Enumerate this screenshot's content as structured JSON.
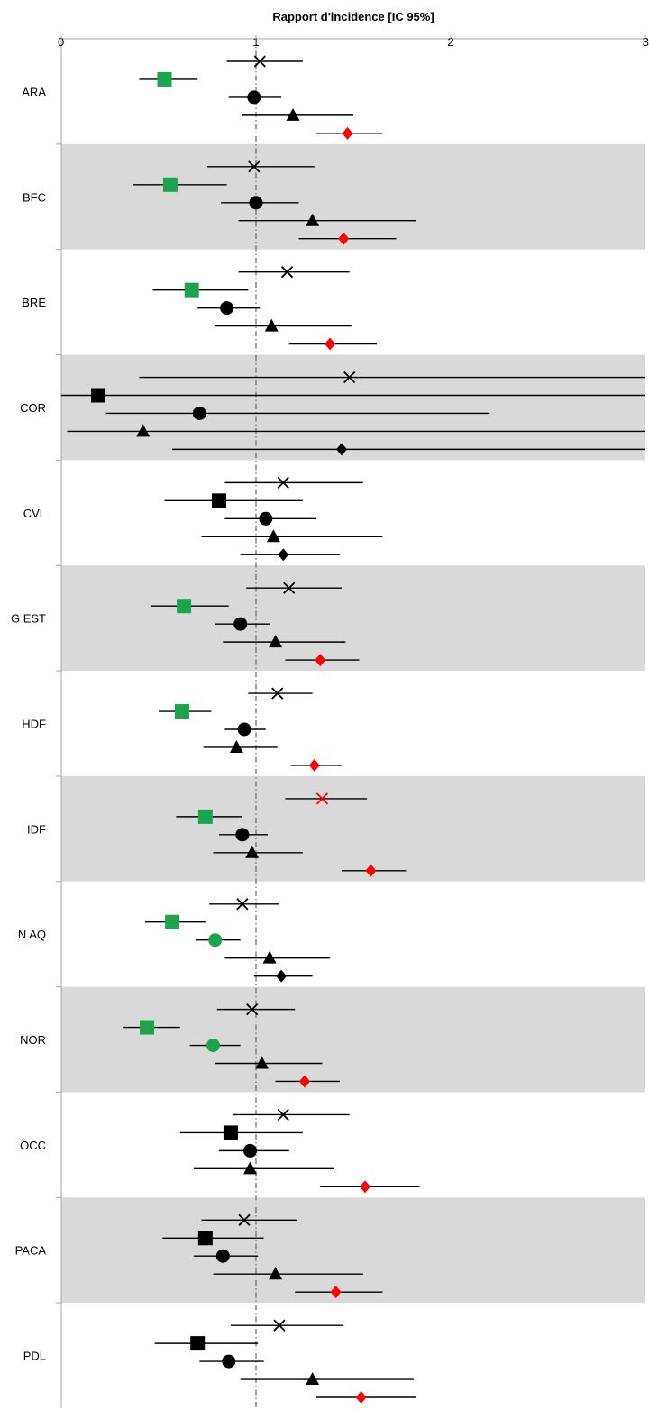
{
  "chart_data": {
    "type": "scatter",
    "subtype": "forest-plot",
    "title": "",
    "xlabel": "Rapport d'incidence [IC 95%]",
    "xlim": [
      0,
      3
    ],
    "xticks": [
      "0",
      "1",
      "2",
      "3"
    ],
    "reference_line": 1,
    "axis_position": "top",
    "categories": [
      "ARA",
      "BFC",
      "BRE",
      "COR",
      "CVL",
      "G EST",
      "HDF",
      "IDF",
      "N AQ",
      "NOR",
      "OCC",
      "PACA",
      "PDL"
    ],
    "shaded_rows": [
      "BFC",
      "COR",
      "G EST",
      "IDF",
      "NOR",
      "PACA"
    ],
    "row_bg_color": "#d9d9d9",
    "marker_order": [
      "cross",
      "square",
      "circle",
      "triangle",
      "diamond"
    ],
    "colors": {
      "default": "#000000",
      "green": "#1ca34d",
      "red": "#ff0000"
    },
    "rows": [
      {
        "category": "ARA",
        "points": [
          {
            "marker": "cross",
            "est": 1.02,
            "lo": 0.85,
            "hi": 1.24,
            "color": "default"
          },
          {
            "marker": "square",
            "est": 0.53,
            "lo": 0.4,
            "hi": 0.7,
            "color": "green"
          },
          {
            "marker": "circle",
            "est": 0.99,
            "lo": 0.86,
            "hi": 1.13,
            "color": "default"
          },
          {
            "marker": "triangle",
            "est": 1.19,
            "lo": 0.93,
            "hi": 1.5,
            "color": "default"
          },
          {
            "marker": "diamond",
            "est": 1.47,
            "lo": 1.31,
            "hi": 1.65,
            "color": "red"
          }
        ]
      },
      {
        "category": "BFC",
        "points": [
          {
            "marker": "cross",
            "est": 0.99,
            "lo": 0.75,
            "hi": 1.3,
            "color": "default"
          },
          {
            "marker": "square",
            "est": 0.56,
            "lo": 0.37,
            "hi": 0.85,
            "color": "green"
          },
          {
            "marker": "circle",
            "est": 1.0,
            "lo": 0.82,
            "hi": 1.22,
            "color": "default"
          },
          {
            "marker": "triangle",
            "est": 1.29,
            "lo": 0.91,
            "hi": 1.82,
            "color": "default"
          },
          {
            "marker": "diamond",
            "est": 1.45,
            "lo": 1.22,
            "hi": 1.72,
            "color": "red"
          }
        ]
      },
      {
        "category": "BRE",
        "points": [
          {
            "marker": "cross",
            "est": 1.16,
            "lo": 0.91,
            "hi": 1.48,
            "color": "default"
          },
          {
            "marker": "square",
            "est": 0.67,
            "lo": 0.47,
            "hi": 0.96,
            "color": "green"
          },
          {
            "marker": "circle",
            "est": 0.85,
            "lo": 0.7,
            "hi": 1.02,
            "color": "default"
          },
          {
            "marker": "triangle",
            "est": 1.08,
            "lo": 0.79,
            "hi": 1.49,
            "color": "default"
          },
          {
            "marker": "diamond",
            "est": 1.38,
            "lo": 1.17,
            "hi": 1.62,
            "color": "red"
          }
        ]
      },
      {
        "category": "COR",
        "points": [
          {
            "marker": "cross",
            "est": 1.48,
            "lo": 0.4,
            "hi": 3.0,
            "color": "default"
          },
          {
            "marker": "square",
            "est": 0.19,
            "lo": 0.0,
            "hi": 3.0,
            "color": "default"
          },
          {
            "marker": "circle",
            "est": 0.71,
            "lo": 0.23,
            "hi": 2.2,
            "color": "default"
          },
          {
            "marker": "triangle",
            "est": 0.42,
            "lo": 0.03,
            "hi": 3.0,
            "color": "default"
          },
          {
            "marker": "diamond",
            "est": 1.44,
            "lo": 0.57,
            "hi": 3.0,
            "color": "default"
          }
        ]
      },
      {
        "category": "CVL",
        "points": [
          {
            "marker": "cross",
            "est": 1.14,
            "lo": 0.84,
            "hi": 1.55,
            "color": "default"
          },
          {
            "marker": "square",
            "est": 0.81,
            "lo": 0.53,
            "hi": 1.24,
            "color": "default"
          },
          {
            "marker": "circle",
            "est": 1.05,
            "lo": 0.84,
            "hi": 1.31,
            "color": "default"
          },
          {
            "marker": "triangle",
            "est": 1.09,
            "lo": 0.72,
            "hi": 1.65,
            "color": "default"
          },
          {
            "marker": "diamond",
            "est": 1.14,
            "lo": 0.92,
            "hi": 1.43,
            "color": "default"
          }
        ]
      },
      {
        "category": "G EST",
        "points": [
          {
            "marker": "cross",
            "est": 1.17,
            "lo": 0.95,
            "hi": 1.44,
            "color": "default"
          },
          {
            "marker": "square",
            "est": 0.63,
            "lo": 0.46,
            "hi": 0.86,
            "color": "green"
          },
          {
            "marker": "circle",
            "est": 0.92,
            "lo": 0.79,
            "hi": 1.07,
            "color": "default"
          },
          {
            "marker": "triangle",
            "est": 1.1,
            "lo": 0.83,
            "hi": 1.46,
            "color": "default"
          },
          {
            "marker": "diamond",
            "est": 1.33,
            "lo": 1.15,
            "hi": 1.53,
            "color": "red"
          }
        ]
      },
      {
        "category": "HDF",
        "points": [
          {
            "marker": "cross",
            "est": 1.11,
            "lo": 0.96,
            "hi": 1.29,
            "color": "default"
          },
          {
            "marker": "square",
            "est": 0.62,
            "lo": 0.5,
            "hi": 0.77,
            "color": "green"
          },
          {
            "marker": "circle",
            "est": 0.94,
            "lo": 0.84,
            "hi": 1.05,
            "color": "default"
          },
          {
            "marker": "triangle",
            "est": 0.9,
            "lo": 0.73,
            "hi": 1.11,
            "color": "default"
          },
          {
            "marker": "diamond",
            "est": 1.3,
            "lo": 1.18,
            "hi": 1.44,
            "color": "red"
          }
        ]
      },
      {
        "category": "IDF",
        "points": [
          {
            "marker": "cross",
            "est": 1.34,
            "lo": 1.15,
            "hi": 1.57,
            "color": "red"
          },
          {
            "marker": "square",
            "est": 0.74,
            "lo": 0.59,
            "hi": 0.93,
            "color": "green"
          },
          {
            "marker": "circle",
            "est": 0.93,
            "lo": 0.81,
            "hi": 1.06,
            "color": "default"
          },
          {
            "marker": "triangle",
            "est": 0.98,
            "lo": 0.78,
            "hi": 1.24,
            "color": "default"
          },
          {
            "marker": "diamond",
            "est": 1.59,
            "lo": 1.44,
            "hi": 1.77,
            "color": "red"
          }
        ]
      },
      {
        "category": "N AQ",
        "points": [
          {
            "marker": "cross",
            "est": 0.93,
            "lo": 0.76,
            "hi": 1.12,
            "color": "default"
          },
          {
            "marker": "square",
            "est": 0.57,
            "lo": 0.43,
            "hi": 0.74,
            "color": "green"
          },
          {
            "marker": "circle",
            "est": 0.79,
            "lo": 0.69,
            "hi": 0.92,
            "color": "green"
          },
          {
            "marker": "triangle",
            "est": 1.07,
            "lo": 0.84,
            "hi": 1.38,
            "color": "default"
          },
          {
            "marker": "diamond",
            "est": 1.13,
            "lo": 0.99,
            "hi": 1.29,
            "color": "default"
          }
        ]
      },
      {
        "category": "NOR",
        "points": [
          {
            "marker": "cross",
            "est": 0.98,
            "lo": 0.8,
            "hi": 1.2,
            "color": "default"
          },
          {
            "marker": "square",
            "est": 0.44,
            "lo": 0.32,
            "hi": 0.61,
            "color": "green"
          },
          {
            "marker": "circle",
            "est": 0.78,
            "lo": 0.66,
            "hi": 0.92,
            "color": "green"
          },
          {
            "marker": "triangle",
            "est": 1.03,
            "lo": 0.79,
            "hi": 1.34,
            "color": "default"
          },
          {
            "marker": "diamond",
            "est": 1.25,
            "lo": 1.1,
            "hi": 1.43,
            "color": "red"
          }
        ]
      },
      {
        "category": "OCC",
        "points": [
          {
            "marker": "cross",
            "est": 1.14,
            "lo": 0.88,
            "hi": 1.48,
            "color": "default"
          },
          {
            "marker": "square",
            "est": 0.87,
            "lo": 0.61,
            "hi": 1.24,
            "color": "default"
          },
          {
            "marker": "circle",
            "est": 0.97,
            "lo": 0.81,
            "hi": 1.17,
            "color": "default"
          },
          {
            "marker": "triangle",
            "est": 0.97,
            "lo": 0.68,
            "hi": 1.4,
            "color": "default"
          },
          {
            "marker": "diamond",
            "est": 1.56,
            "lo": 1.33,
            "hi": 1.84,
            "color": "red"
          }
        ]
      },
      {
        "category": "PACA",
        "points": [
          {
            "marker": "cross",
            "est": 0.94,
            "lo": 0.72,
            "hi": 1.21,
            "color": "default"
          },
          {
            "marker": "square",
            "est": 0.74,
            "lo": 0.52,
            "hi": 1.04,
            "color": "default"
          },
          {
            "marker": "circle",
            "est": 0.83,
            "lo": 0.68,
            "hi": 1.01,
            "color": "default"
          },
          {
            "marker": "triangle",
            "est": 1.1,
            "lo": 0.78,
            "hi": 1.55,
            "color": "default"
          },
          {
            "marker": "diamond",
            "est": 1.41,
            "lo": 1.2,
            "hi": 1.65,
            "color": "red"
          }
        ]
      },
      {
        "category": "PDL",
        "points": [
          {
            "marker": "cross",
            "est": 1.12,
            "lo": 0.87,
            "hi": 1.45,
            "color": "default"
          },
          {
            "marker": "square",
            "est": 0.7,
            "lo": 0.48,
            "hi": 1.01,
            "color": "default"
          },
          {
            "marker": "circle",
            "est": 0.86,
            "lo": 0.71,
            "hi": 1.04,
            "color": "default"
          },
          {
            "marker": "triangle",
            "est": 1.29,
            "lo": 0.92,
            "hi": 1.81,
            "color": "default"
          },
          {
            "marker": "diamond",
            "est": 1.54,
            "lo": 1.31,
            "hi": 1.82,
            "color": "red"
          }
        ]
      }
    ]
  }
}
